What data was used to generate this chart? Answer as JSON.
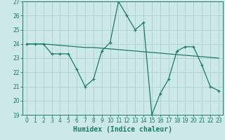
{
  "xlabel": "Humidex (Indice chaleur)",
  "x": [
    0,
    1,
    2,
    3,
    4,
    5,
    6,
    7,
    8,
    9,
    10,
    11,
    12,
    13,
    14,
    15,
    16,
    17,
    18,
    19,
    20,
    21,
    22,
    23
  ],
  "y_main": [
    24,
    24,
    24,
    23.3,
    23.3,
    23.3,
    22.2,
    21.0,
    21.5,
    23.5,
    24.1,
    27.0,
    26.0,
    25.0,
    25.5,
    19.0,
    20.5,
    21.5,
    23.5,
    23.8,
    23.8,
    22.5,
    21.0,
    20.7
  ],
  "y_trend": [
    24.0,
    24.0,
    24.0,
    23.95,
    23.9,
    23.85,
    23.8,
    23.75,
    23.75,
    23.7,
    23.65,
    23.6,
    23.55,
    23.5,
    23.45,
    23.4,
    23.35,
    23.3,
    23.25,
    23.2,
    23.15,
    23.1,
    23.05,
    23.0
  ],
  "line_color": "#1a7a6a",
  "bg_color": "#cce8e8",
  "grid_color": "#aacfcf",
  "ylim": [
    19,
    27
  ],
  "yticks": [
    19,
    20,
    21,
    22,
    23,
    24,
    25,
    26,
    27
  ],
  "xticks": [
    0,
    1,
    2,
    3,
    4,
    5,
    6,
    7,
    8,
    9,
    10,
    11,
    12,
    13,
    14,
    15,
    16,
    17,
    18,
    19,
    20,
    21,
    22,
    23
  ],
  "tick_fontsize": 5.5,
  "label_fontsize": 7
}
